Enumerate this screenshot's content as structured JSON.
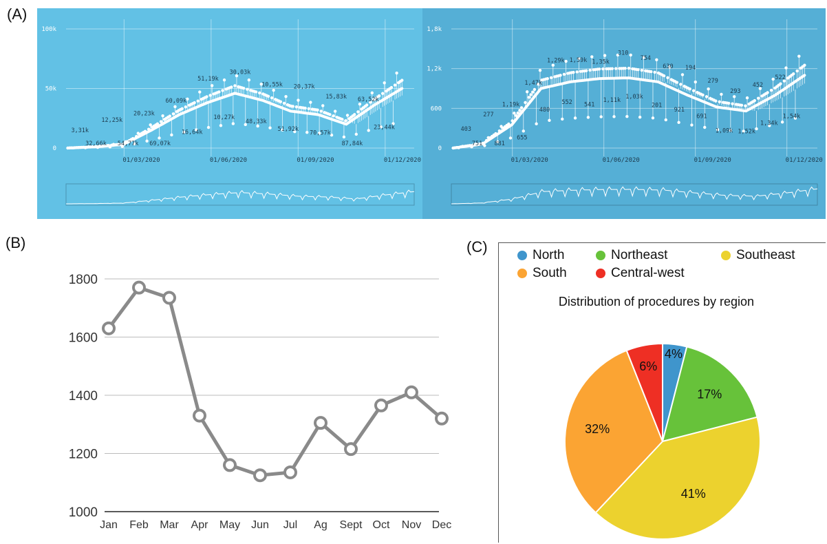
{
  "panels": {
    "a_label": "(A)",
    "b_label": "(B)",
    "c_label": "(C)"
  },
  "colors": {
    "panel_a_left_bg": "#62c1e5",
    "panel_a_right_bg": "#55afd6",
    "line_b": "#8a8a8a",
    "north": "#3f95cc",
    "northeast": "#67c23a",
    "southeast": "#ecd22e",
    "south": "#fba433",
    "central_west": "#ee2f24"
  },
  "chart_data": [
    {
      "type": "line",
      "panel": "A-left",
      "ylim": [
        0,
        100000
      ],
      "y_ticks": [
        "0",
        "50k",
        "100k"
      ],
      "x_ticks": [
        "01/03/2020",
        "01/06/2020",
        "01/09/2020",
        "01/12/2020"
      ],
      "grid": true,
      "series": [
        {
          "x": [
            "01/01/2020",
            "01/02/2020",
            "01/03/2020",
            "01/04/2020",
            "01/05/2020",
            "01/06/2020",
            "01/07/2020",
            "01/08/2020",
            "01/09/2020",
            "01/10/2020",
            "01/11/2020",
            "01/12/2020",
            "01/01/2021"
          ],
          "values": [
            0,
            1000,
            3000,
            15000,
            28000,
            38000,
            46000,
            40000,
            31000,
            28000,
            20000,
            36000,
            50000
          ]
        }
      ],
      "annotations": [
        "3,31k",
        "32,66k",
        "12,25k",
        "54,77k",
        "20,23k",
        "69,07k",
        "60,09k",
        "16,64k",
        "51,19k",
        "10,27k",
        "30,03k",
        "48,33k",
        "10,55k",
        "51,92k",
        "20,37k",
        "70,57k",
        "15,83k",
        "87,84k",
        "63,52k",
        "23,44k"
      ]
    },
    {
      "type": "line",
      "panel": "A-right",
      "ylim": [
        0,
        1800
      ],
      "y_ticks": [
        "0",
        "600",
        "1,2k",
        "1,8k"
      ],
      "x_ticks": [
        "01/03/2020",
        "01/06/2020",
        "01/09/2020",
        "01/12/2020"
      ],
      "grid": true,
      "series": [
        {
          "x": [
            "01/01/2020",
            "01/02/2020",
            "01/03/2020",
            "01/04/2020",
            "01/05/2020",
            "01/06/2020",
            "01/07/2020",
            "01/08/2020",
            "01/09/2020",
            "01/10/2020",
            "01/11/2020",
            "01/12/2020",
            "01/01/2021"
          ],
          "values": [
            0,
            60,
            350,
            900,
            1000,
            1050,
            1060,
            1000,
            800,
            620,
            560,
            800,
            1100
          ]
        }
      ],
      "annotations": [
        "403",
        "751",
        "277",
        "881",
        "1,19k",
        "655",
        "1,47k",
        "480",
        "1,29k",
        "552",
        "1,59k",
        "541",
        "1,35k",
        "1,11k",
        "310",
        "1,03k",
        "754",
        "201",
        "630",
        "921",
        "194",
        "691",
        "279",
        "1,09k",
        "293",
        "1,52k",
        "452",
        "1,34k",
        "522",
        "1,54k"
      ]
    },
    {
      "type": "line",
      "panel": "B",
      "categories": [
        "Jan",
        "Feb",
        "Mar",
        "Apr",
        "May",
        "Jun",
        "Jul",
        "Ag",
        "Sept",
        "Oct",
        "Nov",
        "Dec"
      ],
      "values": [
        1630,
        1770,
        1735,
        1330,
        1160,
        1125,
        1135,
        1305,
        1215,
        1365,
        1410,
        1320
      ],
      "ylim": [
        1000,
        1800
      ],
      "y_ticks": [
        "1000",
        "1200",
        "1400",
        "1600",
        "1800"
      ],
      "grid": true
    },
    {
      "type": "pie",
      "panel": "C",
      "title": "Distribution of procedures by region",
      "legend": "top",
      "series": [
        {
          "name": "North",
          "value": 4,
          "label": "4%"
        },
        {
          "name": "Northeast",
          "value": 17,
          "label": "17%"
        },
        {
          "name": "Southeast",
          "value": 41,
          "label": "41%"
        },
        {
          "name": "South",
          "value": 32,
          "label": "32%"
        },
        {
          "name": "Central-west",
          "value": 6,
          "label": "6%"
        }
      ]
    }
  ]
}
